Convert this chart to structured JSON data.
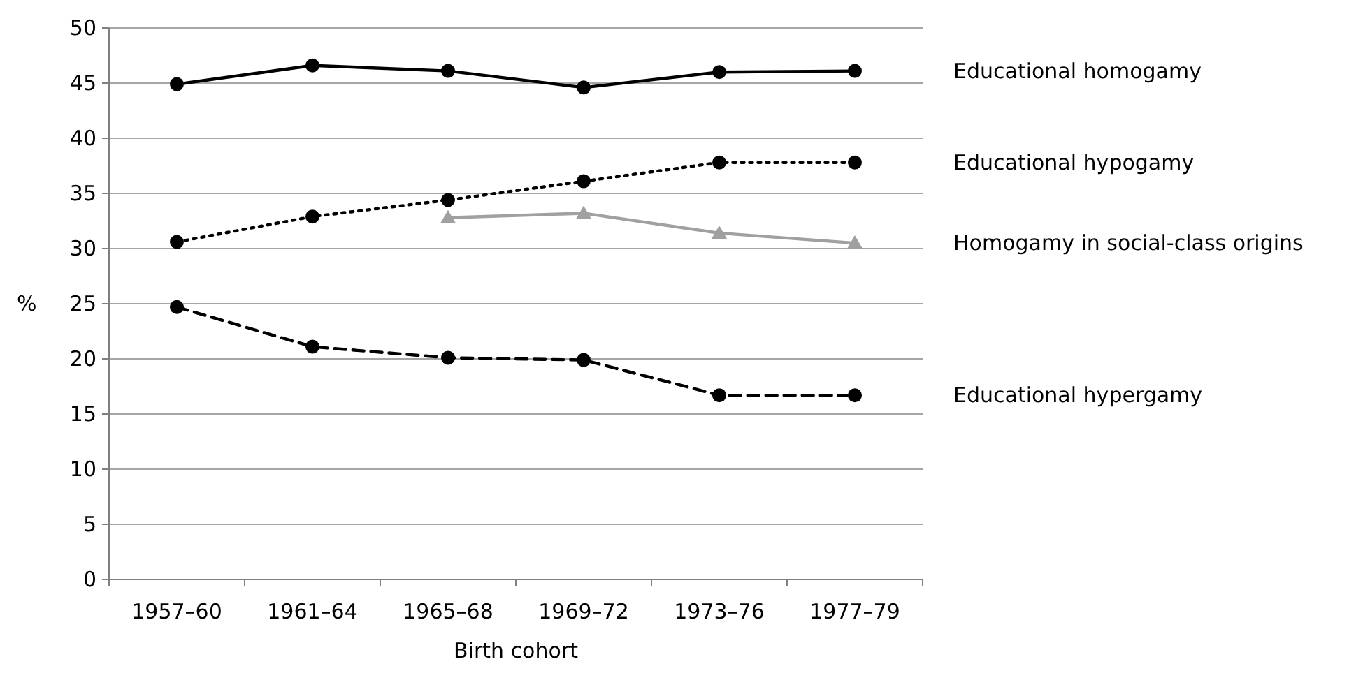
{
  "chart_data": {
    "type": "line",
    "xlabel": "Birth cohort",
    "ylabel": "%",
    "categories": [
      "1957–60",
      "1961–64",
      "1965–68",
      "1969–72",
      "1973–76",
      "1977–79"
    ],
    "series": [
      {
        "name": "Educational homogamy",
        "color": "#000000",
        "marker": "circle",
        "line_style": "solid",
        "values": [
          44.9,
          46.6,
          46.1,
          44.6,
          46,
          46.1
        ]
      },
      {
        "name": "Educational hypogamy",
        "color": "#000000",
        "marker": "circle",
        "line_style": "dotted",
        "values": [
          30.6,
          32.9,
          34.4,
          36.1,
          37.8,
          37.8
        ]
      },
      {
        "name": "Homogamy in social-class origins",
        "color": "#a0a0a0",
        "marker": "triangle",
        "line_style": "solid",
        "values": [
          null,
          null,
          32.8,
          33.2,
          31.4,
          30.5
        ]
      },
      {
        "name": "Educational hypergamy",
        "color": "#000000",
        "marker": "circle",
        "line_style": "dashed",
        "values": [
          24.7,
          21.1,
          20.1,
          19.9,
          16.7,
          16.7
        ]
      }
    ],
    "ylim": [
      0,
      50
    ],
    "yticks": [
      0,
      5,
      10,
      15,
      20,
      25,
      30,
      35,
      40,
      45,
      50
    ],
    "grid": "y"
  }
}
